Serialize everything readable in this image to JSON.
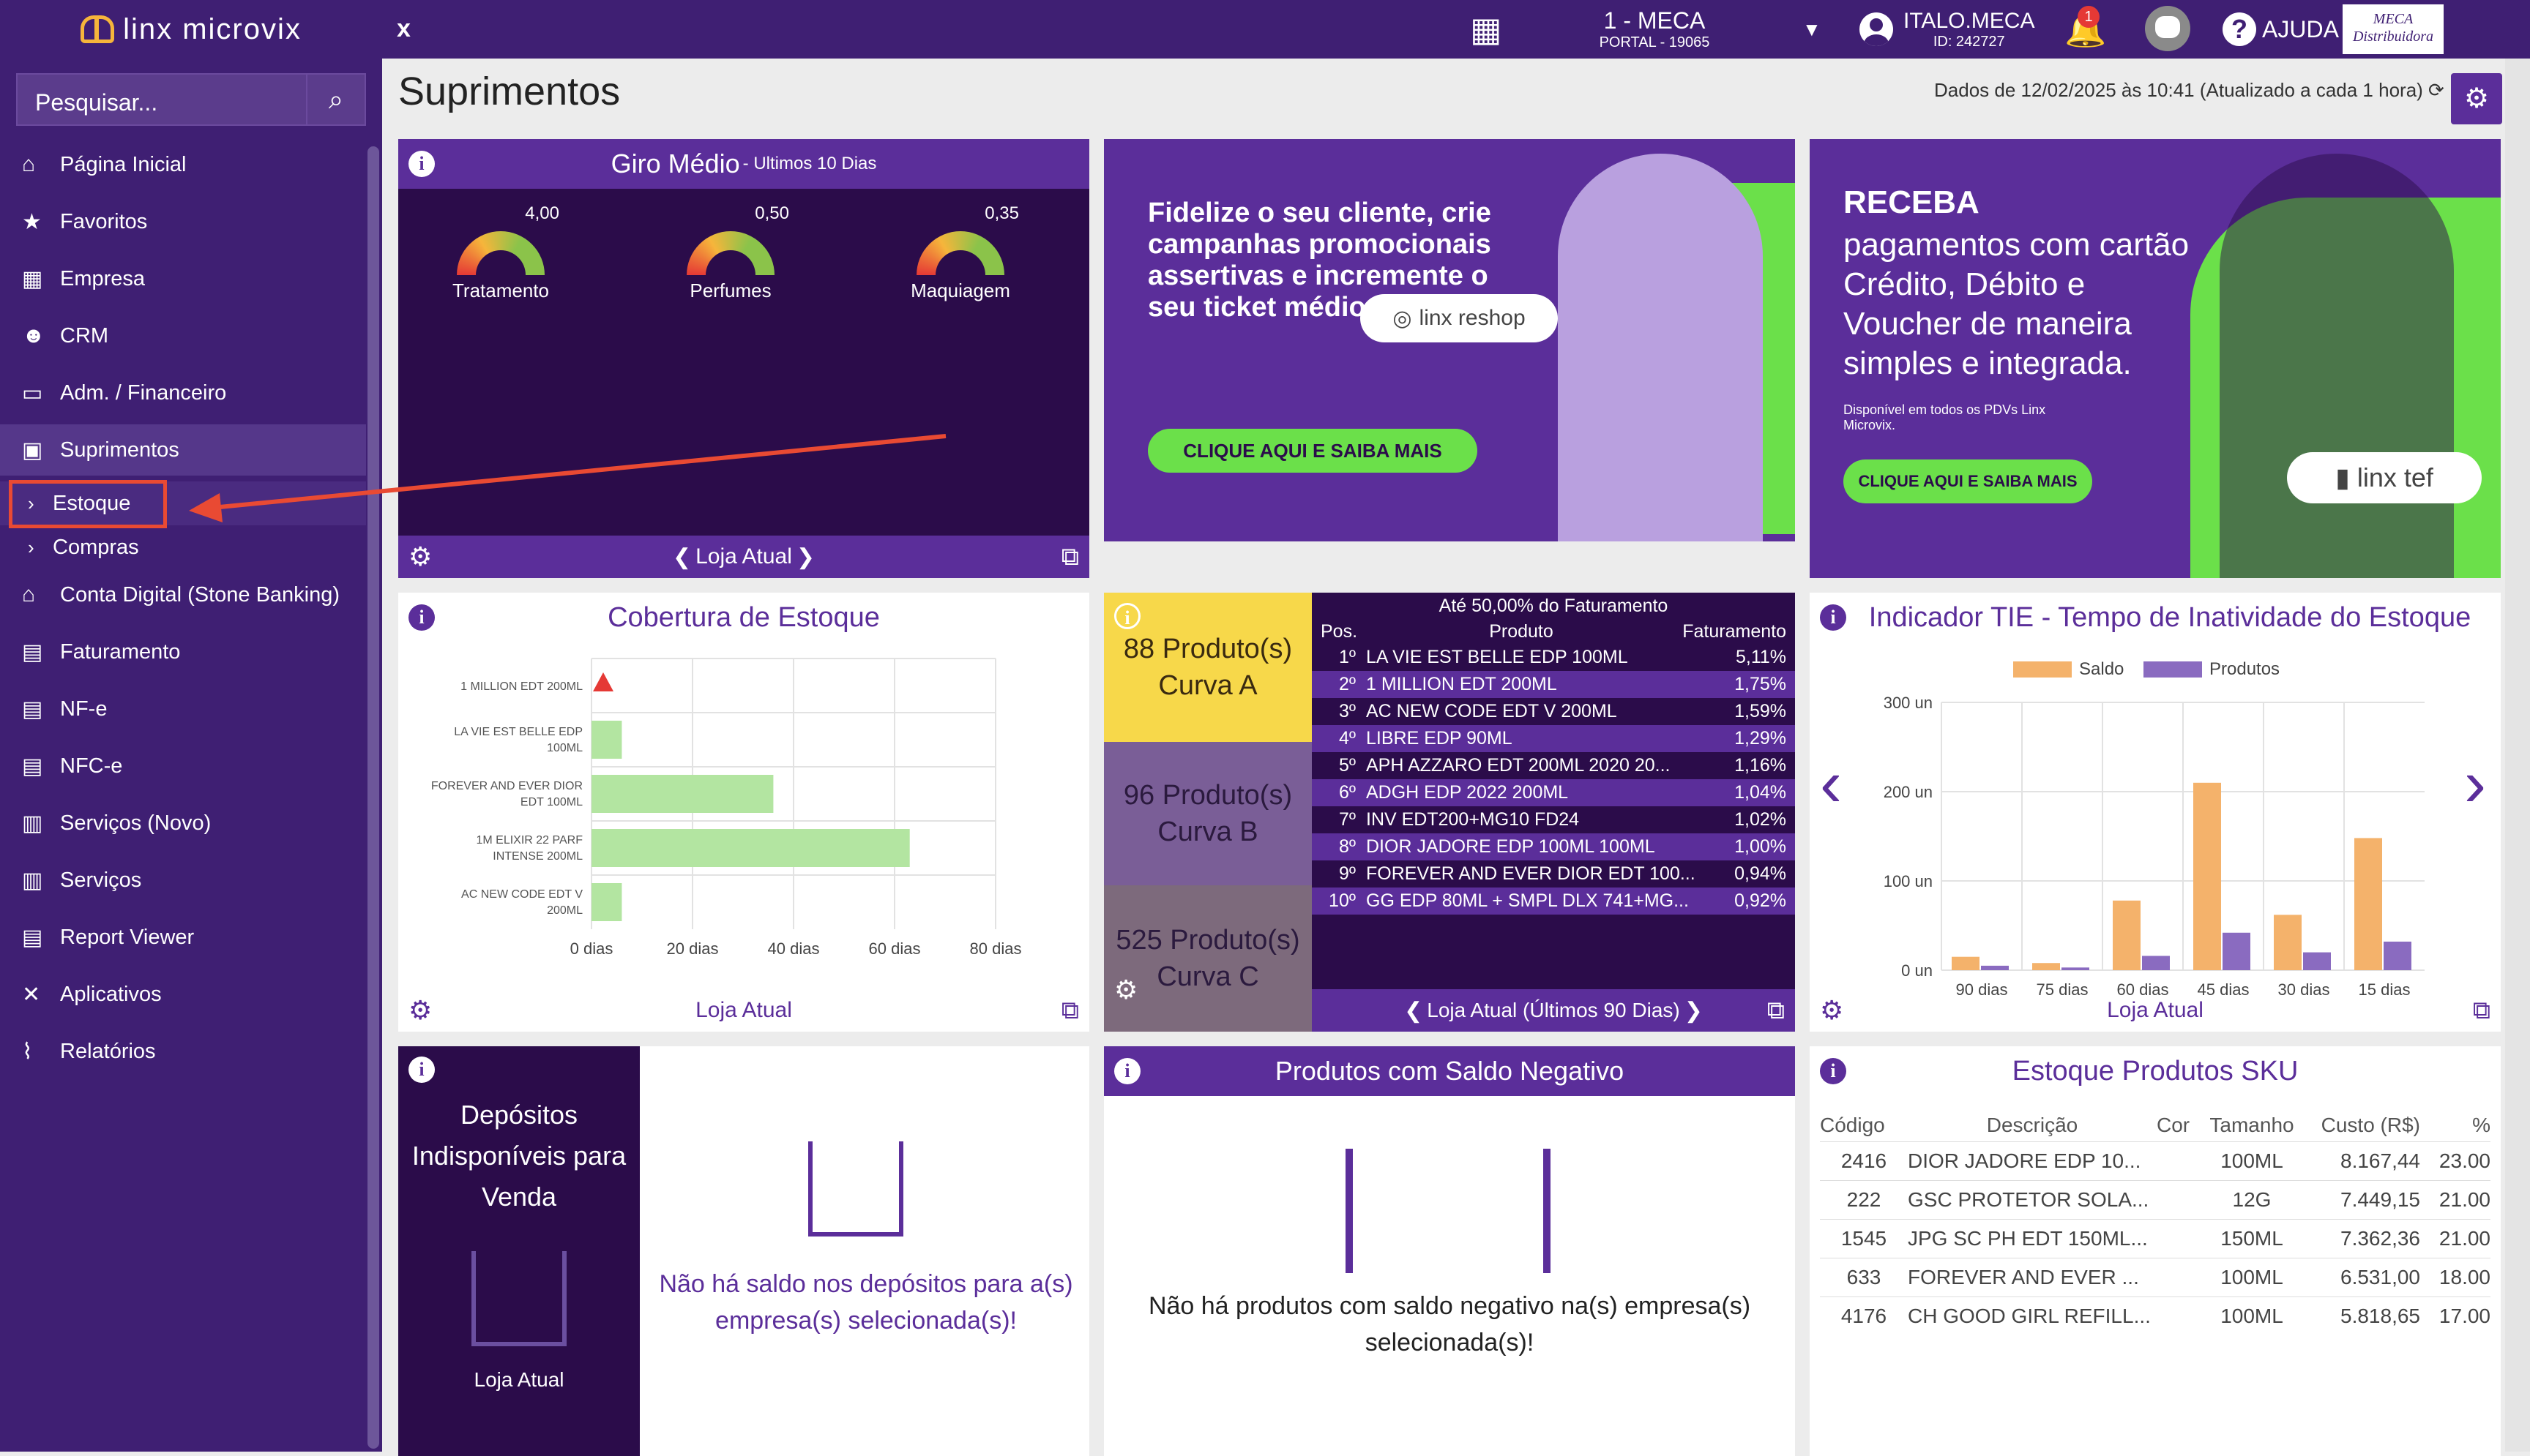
{
  "topbar": {
    "logo": "linx microvix",
    "close": "x",
    "store_code": "1 - MECA",
    "store_sub": "PORTAL - 19065",
    "user_name": "ITALO.MECA",
    "user_id": "ID: 242727",
    "notifications": "1",
    "help": "AJUDA",
    "brand_line1": "MECA",
    "brand_line2": "Distribuidora"
  },
  "sidebar": {
    "search_placeholder": "Pesquisar...",
    "items": [
      {
        "label": "Página Inicial",
        "icon": "home-icon"
      },
      {
        "label": "Favoritos",
        "icon": "star-icon"
      },
      {
        "label": "Empresa",
        "icon": "building-icon"
      },
      {
        "label": "CRM",
        "icon": "users-icon"
      },
      {
        "label": "Adm. / Financeiro",
        "icon": "money-icon"
      },
      {
        "label": "Suprimentos",
        "icon": "boxes-icon"
      },
      {
        "label": "Estoque",
        "icon": "chevron-right-icon"
      },
      {
        "label": "Compras",
        "icon": "chevron-right-icon"
      },
      {
        "label": "Conta Digital (Stone Banking)",
        "icon": "bank-icon"
      },
      {
        "label": "Faturamento",
        "icon": "document-icon"
      },
      {
        "label": "NF-e",
        "icon": "document-icon"
      },
      {
        "label": "NFC-e",
        "icon": "document-icon"
      },
      {
        "label": "Serviços (Novo)",
        "icon": "clipboard-icon"
      },
      {
        "label": "Serviços",
        "icon": "clipboard-icon"
      },
      {
        "label": "Report Viewer",
        "icon": "document-icon"
      },
      {
        "label": "Aplicativos",
        "icon": "tools-icon"
      },
      {
        "label": "Relatórios",
        "icon": "chart-icon"
      }
    ]
  },
  "main": {
    "title": "Suprimentos",
    "updated": "Dados de 12/02/2025 às 10:41 (Atualizado a cada 1 hora)"
  },
  "giro": {
    "title": "Giro Médio",
    "subtitle": " - Ultimos 10 Dias",
    "footer": "Loja Atual",
    "gauges": [
      {
        "label": "Tratamento",
        "value": "4,00"
      },
      {
        "label": "Perfumes",
        "value": "0,50"
      },
      {
        "label": "Maquiagem",
        "value": "0,35"
      }
    ]
  },
  "banner1": {
    "text": "Fidelize o seu cliente, crie campanhas promocionais assertivas e incremente o seu ticket médio.",
    "cta": "CLIQUE AQUI E SAIBA MAIS",
    "pill": "linx reshop"
  },
  "banner2": {
    "head": "RECEBA",
    "text": "pagamentos com cartão Crédito, Débito e Voucher de maneira simples e integrada.",
    "small": "Disponível em todos os PDVs Linx Microvix.",
    "cta": "CLIQUE AQUI E SAIBA MAIS",
    "pill": "linx tef"
  },
  "cobertura": {
    "title": "Cobertura de Estoque",
    "footer": "Loja Atual"
  },
  "curva": {
    "header": "Até 50,00% do Faturamento",
    "col_pos": "Pos.",
    "col_prod": "Produto",
    "col_fat": "Faturamento",
    "a": "88 Produto(s) Curva A",
    "b": "96 Produto(s) Curva B",
    "c": "525 Produto(s) Curva C",
    "footer": "Loja Atual (Últimos 90 Dias)",
    "rows": [
      {
        "p": "1º",
        "n": "LA VIE EST BELLE EDP 100ML",
        "f": "5,11%"
      },
      {
        "p": "2º",
        "n": "1 MILLION EDT 200ML",
        "f": "1,75%"
      },
      {
        "p": "3º",
        "n": "AC NEW CODE EDT V 200ML",
        "f": "1,59%"
      },
      {
        "p": "4º",
        "n": "LIBRE EDP 90ML",
        "f": "1,29%"
      },
      {
        "p": "5º",
        "n": "APH AZZARO EDT 200ML 2020 20...",
        "f": "1,16%"
      },
      {
        "p": "6º",
        "n": "ADGH EDP 2022 200ML",
        "f": "1,04%"
      },
      {
        "p": "7º",
        "n": "INV EDT200+MG10 FD24",
        "f": "1,02%"
      },
      {
        "p": "8º",
        "n": "DIOR JADORE EDP 100ML 100ML",
        "f": "1,00%"
      },
      {
        "p": "9º",
        "n": "FOREVER AND EVER DIOR EDT 100...",
        "f": "0,94%"
      },
      {
        "p": "10º",
        "n": "GG EDP 80ML + SMPL DLX 741+MG...",
        "f": "0,92%"
      }
    ]
  },
  "tie": {
    "title": "Indicador TIE - Tempo de Inatividade do Estoque",
    "footer": "Loja Atual"
  },
  "depositos": {
    "side": "Depósitos Indisponíveis para Venda",
    "side_footer": "Loja Atual",
    "msg": "Não há saldo nos depósitos para a(s) empresa(s) selecionada(s)!"
  },
  "negativo": {
    "title": "Produtos com Saldo Negativo",
    "msg": "Não há produtos com saldo negativo na(s) empresa(s) selecionada(s)!"
  },
  "sku": {
    "title": "Estoque Produtos SKU",
    "headers": [
      "Código",
      "Descrição",
      "Cor",
      "Tamanho",
      "Custo (R$)",
      "%"
    ],
    "rows": [
      [
        "2416",
        "DIOR JADORE EDP 10...",
        "",
        "100ML",
        "8.167,44",
        "23.00"
      ],
      [
        "222",
        "GSC PROTETOR SOLA...",
        "",
        "12G",
        "7.449,15",
        "21.00"
      ],
      [
        "1545",
        "JPG SC PH EDT 150ML...",
        "",
        "150ML",
        "7.362,36",
        "21.00"
      ],
      [
        "633",
        "FOREVER AND EVER ...",
        "",
        "100ML",
        "6.531,00",
        "18.00"
      ],
      [
        "4176",
        "CH GOOD GIRL REFILL...",
        "",
        "100ML",
        "5.818,65",
        "17.00"
      ]
    ]
  },
  "chart_data": [
    {
      "type": "bar",
      "orientation": "horizontal",
      "title": "Cobertura de Estoque",
      "categories": [
        "1 MILLION EDT 200ML",
        "LA VIE EST BELLE EDP 100ML",
        "FOREVER AND EVER DIOR EDT 100ML",
        "1M ELIXIR 22 PARF INTENSE 200ML",
        "AC NEW CODE EDT V 200ML"
      ],
      "values": [
        0,
        6,
        36,
        63,
        6
      ],
      "xlim": [
        0,
        80
      ],
      "xticks": [
        "0 dias",
        "20 dias",
        "40 dias",
        "60 dias",
        "80 dias"
      ],
      "grid": true,
      "warning_category": "1 MILLION EDT 200ML",
      "colors": {
        "bar": "#b3e5a1"
      }
    },
    {
      "type": "bar",
      "title": "Indicador TIE - Tempo de Inatividade do Estoque",
      "categories": [
        "90 dias",
        "75 dias",
        "60 dias",
        "45 dias",
        "30 dias",
        "15 dias"
      ],
      "series": [
        {
          "name": "Saldo",
          "values": [
            15,
            8,
            78,
            210,
            62,
            148
          ],
          "color": "#f4b26b"
        },
        {
          "name": "Produtos",
          "values": [
            5,
            3,
            16,
            42,
            20,
            32
          ],
          "color": "#8a6bc0"
        }
      ],
      "ylim": [
        0,
        300
      ],
      "yticks": [
        "0 un",
        "100 un",
        "200 un",
        "300 un"
      ],
      "legend": "top",
      "grid": true
    }
  ]
}
